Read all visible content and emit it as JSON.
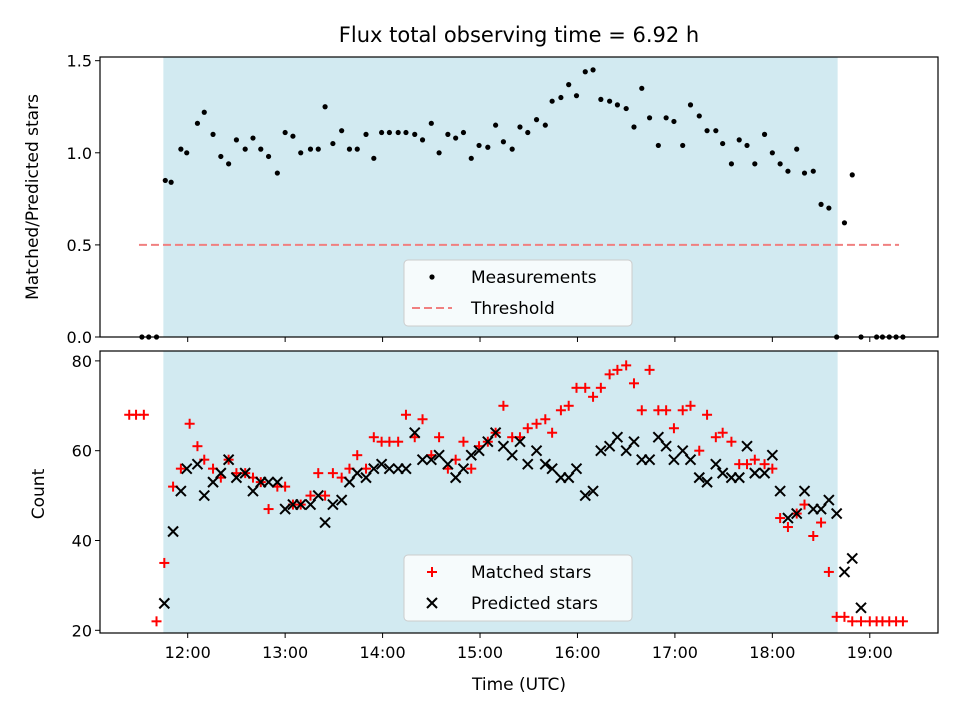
{
  "chart_data": {
    "type": "scatter",
    "title": "Flux total observing time = 6.92 h",
    "shaded_band": {
      "x_start": 11.75,
      "x_end": 18.67,
      "color": "#add8e6"
    },
    "xlabel": "Time (UTC)",
    "xlim": [
      11.1,
      19.7
    ],
    "xticks": [
      {
        "v": 12,
        "label": "12:00"
      },
      {
        "v": 13,
        "label": "13:00"
      },
      {
        "v": 14,
        "label": "14:00"
      },
      {
        "v": 15,
        "label": "15:00"
      },
      {
        "v": 16,
        "label": "16:00"
      },
      {
        "v": 17,
        "label": "17:00"
      },
      {
        "v": 18,
        "label": "18:00"
      },
      {
        "v": 19,
        "label": "19:00"
      }
    ],
    "top": {
      "ylabel": "Matched/Predicted stars",
      "ylim": [
        0,
        1.52
      ],
      "yticks": [
        {
          "v": 0,
          "label": "0.0"
        },
        {
          "v": 0.5,
          "label": "0.5"
        },
        {
          "v": 1.0,
          "label": "1.0"
        },
        {
          "v": 1.5,
          "label": "1.5"
        }
      ],
      "legend_placement": "lower-center",
      "series": [
        {
          "name": "Measurements",
          "marker": "dot",
          "color": "#000000",
          "x": [
            11.53,
            11.6,
            11.68,
            11.77,
            11.83,
            11.93,
            11.99,
            12.1,
            12.17,
            12.26,
            12.34,
            12.42,
            12.5,
            12.59,
            12.67,
            12.75,
            12.83,
            12.92,
            13.0,
            13.08,
            13.16,
            13.26,
            13.34,
            13.41,
            13.49,
            13.58,
            13.66,
            13.74,
            13.83,
            13.91,
            13.99,
            14.07,
            14.16,
            14.24,
            14.33,
            14.41,
            14.5,
            14.58,
            14.67,
            14.75,
            14.83,
            14.91,
            14.99,
            15.08,
            15.16,
            15.24,
            15.33,
            15.41,
            15.49,
            15.58,
            15.67,
            15.74,
            15.83,
            15.91,
            15.99,
            16.08,
            16.16,
            16.24,
            16.33,
            16.41,
            16.5,
            16.58,
            16.66,
            16.74,
            16.83,
            16.91,
            16.99,
            17.08,
            17.16,
            17.25,
            17.33,
            17.42,
            17.49,
            17.58,
            17.66,
            17.74,
            17.82,
            17.92,
            18.0,
            18.08,
            18.16,
            18.25,
            18.33,
            18.42,
            18.5,
            18.58,
            18.66,
            18.74,
            18.82,
            18.91,
            19.07,
            19.13,
            19.2,
            19.27,
            19.34
          ],
          "y": [
            0,
            0,
            0,
            0.85,
            0.84,
            1.02,
            1.0,
            1.16,
            1.22,
            1.1,
            0.98,
            0.94,
            1.07,
            1.02,
            1.08,
            1.02,
            0.98,
            0.89,
            1.11,
            1.09,
            1.0,
            1.02,
            1.02,
            1.25,
            1.05,
            1.12,
            1.02,
            1.02,
            1.1,
            0.97,
            1.11,
            1.11,
            1.11,
            1.11,
            1.1,
            1.07,
            1.16,
            1.0,
            1.1,
            1.08,
            1.11,
            0.97,
            1.04,
            1.03,
            1.15,
            1.06,
            1.02,
            1.14,
            1.11,
            1.18,
            1.15,
            1.28,
            1.3,
            1.37,
            1.31,
            1.44,
            1.45,
            1.29,
            1.28,
            1.26,
            1.24,
            1.14,
            1.35,
            1.19,
            1.04,
            1.19,
            1.17,
            1.04,
            1.26,
            1.2,
            1.12,
            1.12,
            1.05,
            0.94,
            1.07,
            1.04,
            0.94,
            1.1,
            1.0,
            0.94,
            0.9,
            1.02,
            0.89,
            0.9,
            0.72,
            0.7,
            0,
            0.62,
            0.88,
            0,
            0,
            0,
            0,
            0,
            0
          ]
        },
        {
          "name": "Threshold",
          "marker": "dashed-line",
          "color": "#f08080",
          "x": [
            11.5,
            19.3
          ],
          "y": [
            0.5,
            0.5
          ]
        }
      ]
    },
    "bottom": {
      "ylabel": "Count",
      "ylim": [
        19.4,
        82.2
      ],
      "yticks": [
        {
          "v": 20,
          "label": "20"
        },
        {
          "v": 40,
          "label": "40"
        },
        {
          "v": 60,
          "label": "60"
        },
        {
          "v": 80,
          "label": "80"
        }
      ],
      "legend_placement": "lower-center",
      "series": [
        {
          "name": "Matched stars",
          "marker": "plus",
          "color": "#ff0000",
          "x": [
            11.4,
            11.47,
            11.55,
            11.68,
            11.76,
            11.85,
            11.93,
            12.02,
            12.1,
            12.17,
            12.26,
            12.34,
            12.42,
            12.5,
            12.59,
            12.67,
            12.75,
            12.83,
            12.92,
            13.0,
            13.08,
            13.16,
            13.26,
            13.34,
            13.41,
            13.49,
            13.58,
            13.66,
            13.74,
            13.83,
            13.91,
            13.99,
            14.07,
            14.16,
            14.24,
            14.33,
            14.41,
            14.5,
            14.58,
            14.67,
            14.75,
            14.83,
            14.91,
            14.99,
            15.08,
            15.16,
            15.24,
            15.33,
            15.41,
            15.49,
            15.58,
            15.67,
            15.74,
            15.83,
            15.91,
            15.99,
            16.08,
            16.16,
            16.24,
            16.33,
            16.41,
            16.5,
            16.58,
            16.66,
            16.74,
            16.83,
            16.91,
            16.99,
            17.08,
            17.16,
            17.25,
            17.33,
            17.42,
            17.49,
            17.58,
            17.66,
            17.74,
            17.82,
            17.92,
            18.0,
            18.08,
            18.16,
            18.25,
            18.33,
            18.42,
            18.5,
            18.58,
            18.66,
            18.74,
            18.82,
            18.91,
            19.0,
            19.07,
            19.13,
            19.2,
            19.27,
            19.34
          ],
          "y": [
            68,
            68,
            68,
            22,
            35,
            52,
            56,
            66,
            61,
            58,
            56,
            54,
            58,
            55,
            55,
            54,
            53,
            47,
            52,
            52,
            48,
            48,
            50,
            55,
            50,
            55,
            54,
            56,
            59,
            56,
            63,
            62,
            62,
            62,
            68,
            63,
            67,
            59,
            63,
            56,
            58,
            62,
            56,
            61,
            62,
            64,
            70,
            63,
            63,
            65,
            66,
            67,
            64,
            69,
            70,
            74,
            74,
            72,
            74,
            77,
            78,
            79,
            75,
            69,
            78,
            69,
            69,
            65,
            69,
            70,
            60,
            68,
            63,
            64,
            62,
            57,
            57,
            58,
            57,
            56,
            45,
            43,
            46,
            48,
            41,
            44,
            33,
            23,
            23,
            22,
            22,
            22,
            22,
            22,
            22,
            22,
            22
          ]
        },
        {
          "name": "Predicted stars",
          "marker": "x",
          "color": "#000000",
          "x": [
            11.76,
            11.85,
            11.93,
            11.99,
            12.1,
            12.17,
            12.26,
            12.34,
            12.42,
            12.5,
            12.59,
            12.67,
            12.75,
            12.83,
            12.92,
            13.0,
            13.08,
            13.16,
            13.26,
            13.34,
            13.41,
            13.49,
            13.58,
            13.66,
            13.74,
            13.83,
            13.91,
            13.99,
            14.07,
            14.16,
            14.24,
            14.33,
            14.41,
            14.5,
            14.58,
            14.67,
            14.75,
            14.83,
            14.91,
            14.99,
            15.08,
            15.16,
            15.24,
            15.33,
            15.41,
            15.49,
            15.58,
            15.67,
            15.74,
            15.83,
            15.91,
            15.99,
            16.08,
            16.16,
            16.24,
            16.33,
            16.41,
            16.5,
            16.58,
            16.66,
            16.74,
            16.83,
            16.91,
            16.99,
            17.08,
            17.16,
            17.25,
            17.33,
            17.42,
            17.49,
            17.58,
            17.66,
            17.74,
            17.82,
            17.92,
            18.0,
            18.08,
            18.16,
            18.25,
            18.33,
            18.42,
            18.5,
            18.58,
            18.66,
            18.74,
            18.82,
            18.91
          ],
          "y": [
            26,
            42,
            51,
            56,
            57,
            50,
            53,
            55,
            58,
            54,
            55,
            51,
            53,
            53,
            53,
            47,
            48,
            48,
            48,
            50,
            44,
            48,
            49,
            53,
            55,
            54,
            56,
            57,
            56,
            56,
            56,
            64,
            58,
            58,
            59,
            57,
            54,
            56,
            59,
            60,
            62,
            64,
            61,
            59,
            62,
            57,
            60,
            57,
            56,
            54,
            54,
            56,
            50,
            51,
            60,
            61,
            63,
            60,
            62,
            58,
            58,
            63,
            61,
            58,
            60,
            58,
            54,
            53,
            57,
            55,
            54,
            54,
            61,
            55,
            55,
            59,
            51,
            45,
            46,
            51,
            47,
            47,
            49,
            46,
            33,
            36,
            25
          ]
        }
      ]
    }
  }
}
